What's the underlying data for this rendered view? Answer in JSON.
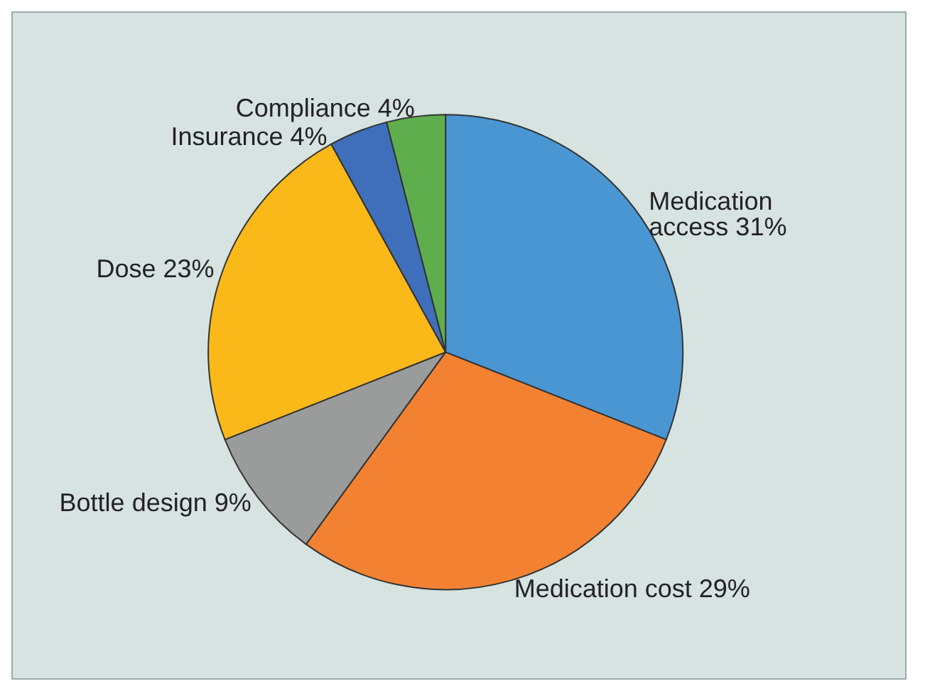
{
  "chart_data": {
    "type": "pie",
    "categories": [
      "Medication access",
      "Medication cost",
      "Bottle design",
      "Dose",
      "Insurance",
      "Compliance"
    ],
    "values": [
      31,
      29,
      9,
      23,
      4,
      4
    ],
    "colors": [
      "#4a96d2",
      "#f28232",
      "#9a9c9c",
      "#fbb919",
      "#3f6fba",
      "#5fae4e"
    ],
    "value_labels": [
      "31%",
      "29%",
      "9%",
      "23%",
      "4%",
      "4%"
    ],
    "legend": false
  }
}
